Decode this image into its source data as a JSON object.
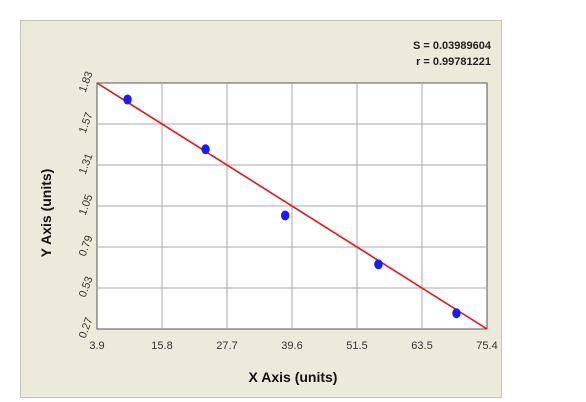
{
  "chart_data": {
    "type": "scatter",
    "xlabel": "X Axis (units)",
    "ylabel": "Y Axis (units)",
    "xlim": [
      3.9,
      75.4
    ],
    "ylim": [
      0.27,
      1.83
    ],
    "x_ticks": [
      "3.9",
      "15.8",
      "27.7",
      "39.6",
      "51.5",
      "63.5",
      "75.4"
    ],
    "y_ticks": [
      "0.27",
      "0.53",
      "0.79",
      "1.05",
      "1.31",
      "1.57",
      "1.83"
    ],
    "grid": true,
    "annotations": [
      "S = 0.03989604",
      "r = 0.99781221"
    ],
    "series": [
      {
        "points": [
          {
            "x": 9.5,
            "y": 1.725
          },
          {
            "x": 23.8,
            "y": 1.41
          },
          {
            "x": 38.4,
            "y": 0.99
          },
          {
            "x": 55.5,
            "y": 0.68
          },
          {
            "x": 69.8,
            "y": 0.37
          }
        ],
        "color": "#1a1aff"
      }
    ],
    "fit_line": {
      "x": [
        3.9,
        75.4
      ],
      "y": [
        1.83,
        0.27
      ],
      "color": "#ee1111"
    }
  }
}
